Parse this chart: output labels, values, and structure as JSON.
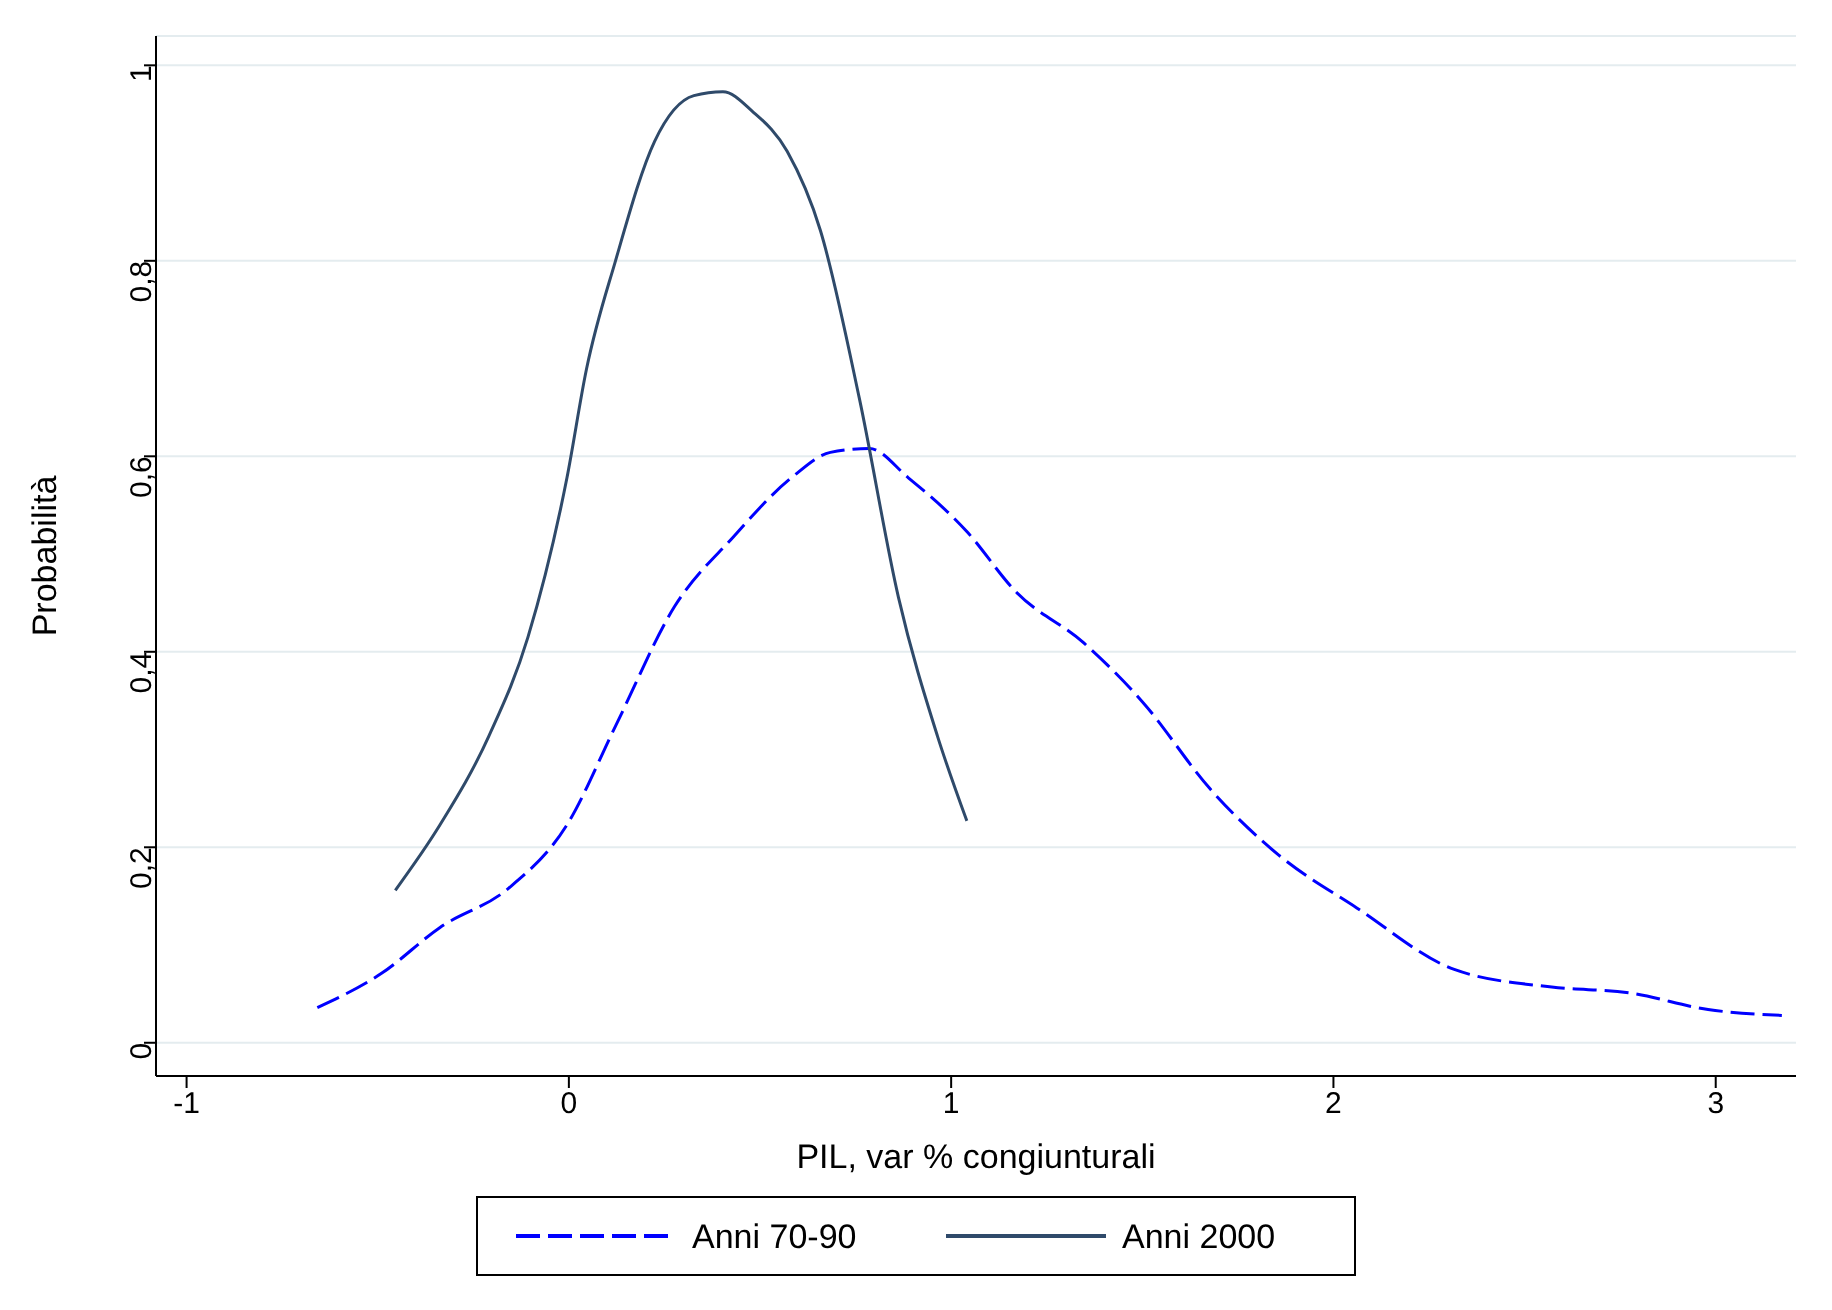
{
  "chart_data": {
    "type": "line",
    "xlabel": "PIL, var % congiunturali",
    "ylabel": "Probabilità",
    "xlim": [
      -1.08,
      3.21
    ],
    "xticks": [
      -1,
      0,
      1,
      2,
      3
    ],
    "ylim": [
      -0.034,
      1.03
    ],
    "yticks": [
      0,
      {
        "value": 0.2,
        "label": "0,2"
      },
      {
        "value": 0.4,
        "label": "0,4"
      },
      {
        "value": 0.6,
        "label": "0,6"
      },
      {
        "value": 0.8,
        "label": "0,8"
      },
      1
    ],
    "grid": "y",
    "legend": "bottom",
    "marker": "none",
    "series": [
      {
        "name": "Anni 70-90",
        "color": "#0000ff",
        "line_style": "dashed",
        "x": [
          -0.658,
          -0.49,
          -0.337,
          -0.158,
          -0.005,
          0.122,
          0.276,
          0.429,
          0.582,
          0.684,
          0.786,
          0.888,
          1.041,
          1.168,
          1.347,
          1.5,
          1.679,
          1.857,
          2.061,
          2.316,
          2.571,
          2.776,
          2.98,
          3.173
        ],
        "values": [
          0.036,
          0.071,
          0.118,
          0.158,
          0.223,
          0.324,
          0.446,
          0.517,
          0.578,
          0.604,
          0.608,
          0.578,
          0.523,
          0.462,
          0.409,
          0.349,
          0.259,
          0.192,
          0.138,
          0.075,
          0.057,
          0.051,
          0.034,
          0.028
        ]
      },
      {
        "name": "Anni 2000",
        "color": "#2f4a6a",
        "line_style": "solid",
        "x": [
          -0.454,
          -0.337,
          -0.209,
          -0.107,
          -0.005,
          0.046,
          0.122,
          0.224,
          0.327,
          0.403,
          0.48,
          0.571,
          0.658,
          0.76,
          0.862,
          0.964,
          1.041
        ],
        "values": [
          0.156,
          0.223,
          0.314,
          0.415,
          0.578,
          0.689,
          0.8,
          0.922,
          0.969,
          0.973,
          0.953,
          0.912,
          0.831,
          0.659,
          0.456,
          0.314,
          0.227
        ]
      }
    ]
  }
}
